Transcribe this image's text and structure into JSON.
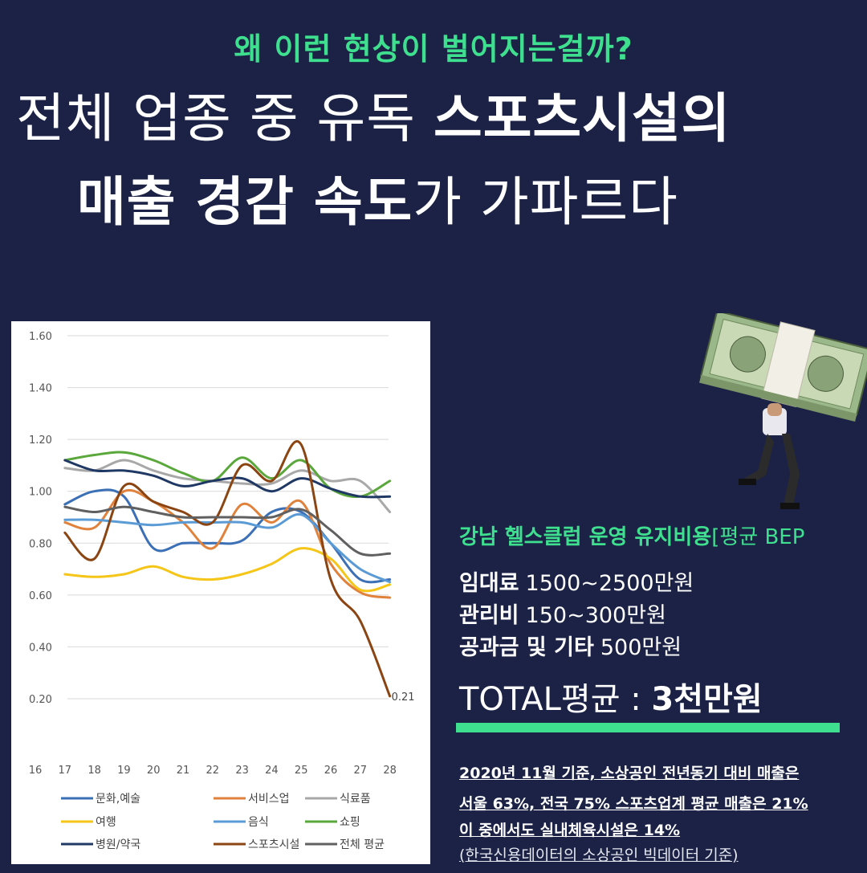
{
  "subtitle": "왜 이런 현상이 벌어지는걸까?",
  "headline": {
    "line1_thin": "전체 업종 중 유독 ",
    "line1_bold": "스포츠시설의",
    "line2_bold": "매출 경감 속도",
    "line2_thin": "가 가파르다"
  },
  "info": {
    "title": "강남 헬스클럽 운영 유지비용",
    "title_tail": "[평균 BEP",
    "costs": [
      {
        "label": "임대료",
        "value": "1500~2500만원"
      },
      {
        "label": "관리비",
        "value": "150~300만원"
      },
      {
        "label": "공과금 및 기타",
        "value": "500만원"
      }
    ],
    "total_label": "TOTAL평균 : ",
    "total_value": "3천만원"
  },
  "notes": [
    "2020년 11월 기준, 소상공인 전년동기 대비 매출은",
    "서울 63%, 전국 75%  스포츠업계 평균 매출은 21%",
    "이 중에서도 실내체육시설은 14%",
    "(한국신용데이터의 소상공인 빅데이터 기준)"
  ],
  "colors": {
    "background": "#1b2245",
    "accent": "#3ee08f"
  },
  "illustration": "money-bundle-carrier-icon",
  "chart_data": {
    "type": "line",
    "x": [
      "16",
      "17",
      "18",
      "19",
      "20",
      "21",
      "22",
      "23",
      "24",
      "25",
      "26",
      "27",
      "28"
    ],
    "ylim": [
      0.2,
      1.6
    ],
    "yticks": [
      "1.60",
      "1.40",
      "1.20",
      "1.00",
      "0.80",
      "0.60",
      "0.40",
      "0.20"
    ],
    "grid": true,
    "legend_position": "bottom",
    "annotation": "0.21",
    "series": [
      {
        "name": "문화,예술",
        "color": "#3b6fb6",
        "values": [
          null,
          0.95,
          1.0,
          0.98,
          0.78,
          0.8,
          0.8,
          0.81,
          0.92,
          0.92,
          0.8,
          0.66,
          0.66
        ]
      },
      {
        "name": "서비스업",
        "color": "#e0823c",
        "values": [
          null,
          0.88,
          0.86,
          1.0,
          0.96,
          0.88,
          0.78,
          0.95,
          0.88,
          0.96,
          0.72,
          0.61,
          0.59
        ]
      },
      {
        "name": "식료품",
        "color": "#a8a8a8",
        "values": [
          null,
          1.09,
          1.08,
          1.12,
          1.08,
          1.05,
          1.04,
          1.03,
          1.03,
          1.08,
          1.04,
          1.04,
          0.92
        ]
      },
      {
        "name": "여행",
        "color": "#f5c518",
        "values": [
          null,
          0.68,
          0.67,
          0.68,
          0.71,
          0.67,
          0.66,
          0.68,
          0.72,
          0.78,
          0.74,
          0.62,
          0.64
        ]
      },
      {
        "name": "음식",
        "color": "#5b9bd5",
        "values": [
          null,
          0.89,
          0.89,
          0.88,
          0.87,
          0.88,
          0.88,
          0.88,
          0.86,
          0.91,
          0.8,
          0.7,
          0.65
        ]
      },
      {
        "name": "쇼핑",
        "color": "#5aa83c",
        "values": [
          null,
          1.12,
          1.14,
          1.15,
          1.12,
          1.07,
          1.04,
          1.13,
          1.05,
          1.12,
          1.01,
          0.98,
          1.04
        ]
      },
      {
        "name": "병원/약국",
        "color": "#1f3864",
        "values": [
          null,
          1.12,
          1.08,
          1.08,
          1.06,
          1.02,
          1.04,
          1.05,
          1.0,
          1.05,
          1.01,
          0.98,
          0.98
        ]
      },
      {
        "name": "스포츠시설",
        "color": "#8b4513",
        "values": [
          null,
          0.84,
          0.74,
          1.02,
          0.96,
          0.92,
          0.88,
          1.1,
          1.04,
          1.18,
          0.66,
          0.5,
          0.21
        ]
      },
      {
        "name": "전체 평균",
        "color": "#606060",
        "values": [
          null,
          0.94,
          0.92,
          0.94,
          0.92,
          0.9,
          0.9,
          0.9,
          0.9,
          0.93,
          0.85,
          0.76,
          0.76
        ]
      }
    ]
  }
}
